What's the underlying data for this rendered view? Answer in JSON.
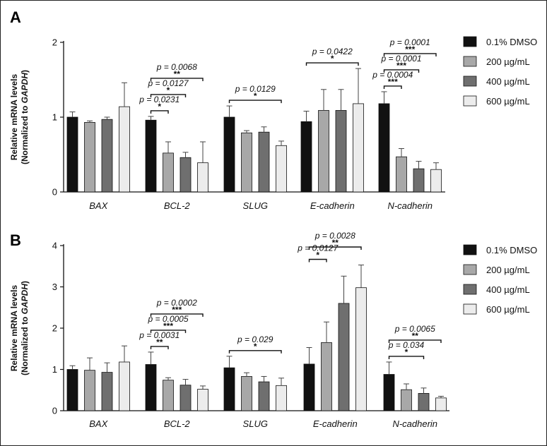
{
  "legend": {
    "series": [
      {
        "name": "0.1% DMSO",
        "color": "#111111"
      },
      {
        "name": "200 µg/mL",
        "color": "#a8a8a8"
      },
      {
        "name": "400 µg/mL",
        "color": "#6f6f6f"
      },
      {
        "name": "600 µg/mL",
        "color": "#ececec"
      }
    ]
  },
  "chart_data": [
    {
      "type": "bar",
      "panel_label": "A",
      "ylabel_line1": "Relative mRNA levels",
      "ylabel_line2_prefix": "(Normalized to ",
      "ylabel_line2_gene": "GAPDH",
      "ylabel_line2_suffix": ")",
      "ylim": [
        0,
        2
      ],
      "yticks": [
        "0",
        "1",
        "2"
      ],
      "categories": [
        "BAX",
        "BCL-2",
        "SLUG",
        "E-cadherin",
        "N-cadherin"
      ],
      "series": [
        {
          "name": "0.1% DMSO",
          "values": [
            1.0,
            0.96,
            1.0,
            0.94,
            1.18
          ],
          "errors": [
            0.07,
            0.05,
            0.15,
            0.14,
            0.16
          ]
        },
        {
          "name": "200 µg/mL",
          "values": [
            0.93,
            0.52,
            0.79,
            1.09,
            0.47
          ],
          "errors": [
            0.02,
            0.15,
            0.03,
            0.28,
            0.11
          ]
        },
        {
          "name": "400 µg/mL",
          "values": [
            0.97,
            0.46,
            0.8,
            1.09,
            0.31
          ],
          "errors": [
            0.03,
            0.07,
            0.07,
            0.28,
            0.1
          ]
        },
        {
          "name": "600 µg/mL",
          "values": [
            1.14,
            0.39,
            0.62,
            1.18,
            0.3
          ],
          "errors": [
            0.32,
            0.28,
            0.06,
            0.47,
            0.09
          ]
        }
      ],
      "significance": [
        {
          "category": 1,
          "from": 0,
          "to": 3,
          "p": "p = 0.0068",
          "stars": "**"
        },
        {
          "category": 1,
          "from": 0,
          "to": 2,
          "p": "p = 0.0127",
          "stars": "*"
        },
        {
          "category": 1,
          "from": 0,
          "to": 1,
          "p": "p = 0.0231",
          "stars": "*"
        },
        {
          "category": 2,
          "from": 0,
          "to": 3,
          "p": "p = 0.0129",
          "stars": "*"
        },
        {
          "category": 3,
          "from": 0,
          "to": 3,
          "p": "p = 0.0422",
          "stars": "*"
        },
        {
          "category": 4,
          "from": 0,
          "to": 3,
          "p": "p = 0.0001",
          "stars": "***"
        },
        {
          "category": 4,
          "from": 0,
          "to": 2,
          "p": "p = 0.0001",
          "stars": "***"
        },
        {
          "category": 4,
          "from": 0,
          "to": 1,
          "p": "p = 0.0004",
          "stars": "***"
        }
      ]
    },
    {
      "type": "bar",
      "panel_label": "B",
      "ylabel_line1": "Relative mRNA levels",
      "ylabel_line2_prefix": "(Normalized to ",
      "ylabel_line2_gene": "GAPDH",
      "ylabel_line2_suffix": ")",
      "ylim": [
        0,
        4
      ],
      "yticks": [
        "0",
        "1",
        "2",
        "3",
        "4"
      ],
      "categories": [
        "BAX",
        "BCL-2",
        "SLUG",
        "E-cadherin",
        "N-cadherin"
      ],
      "series": [
        {
          "name": "0.1% DMSO",
          "values": [
            1.0,
            1.12,
            1.04,
            1.13,
            0.88
          ],
          "errors": [
            0.09,
            0.3,
            0.28,
            0.4,
            0.3
          ]
        },
        {
          "name": "200 µg/mL",
          "values": [
            0.98,
            0.74,
            0.83,
            1.65,
            0.51
          ],
          "errors": [
            0.3,
            0.06,
            0.09,
            0.5,
            0.14
          ]
        },
        {
          "name": "400 µg/mL",
          "values": [
            0.93,
            0.62,
            0.7,
            2.6,
            0.42
          ],
          "errors": [
            0.23,
            0.14,
            0.13,
            0.66,
            0.13
          ]
        },
        {
          "name": "600 µg/mL",
          "values": [
            1.18,
            0.52,
            0.61,
            2.98,
            0.31
          ],
          "errors": [
            0.39,
            0.08,
            0.18,
            0.55,
            0.04
          ]
        }
      ],
      "significance": [
        {
          "category": 1,
          "from": 0,
          "to": 3,
          "p": "p = 0.0002",
          "stars": "***"
        },
        {
          "category": 1,
          "from": 0,
          "to": 2,
          "p": "p = 0.0005",
          "stars": "***"
        },
        {
          "category": 1,
          "from": 0,
          "to": 1,
          "p": "p = 0.0031",
          "stars": "**"
        },
        {
          "category": 2,
          "from": 0,
          "to": 3,
          "p": "p = 0.029",
          "stars": "*"
        },
        {
          "category": 3,
          "from": 0,
          "to": 3,
          "p": "p = 0.0028",
          "stars": "**"
        },
        {
          "category": 3,
          "from": 0,
          "to": 1,
          "p": "p = 0.0127",
          "stars": "*"
        },
        {
          "category": 4,
          "from": 0,
          "to": 3,
          "p": "p = 0.0065",
          "stars": "**"
        },
        {
          "category": 4,
          "from": 0,
          "to": 2,
          "p": "p = 0.034",
          "stars": "*"
        }
      ]
    }
  ]
}
